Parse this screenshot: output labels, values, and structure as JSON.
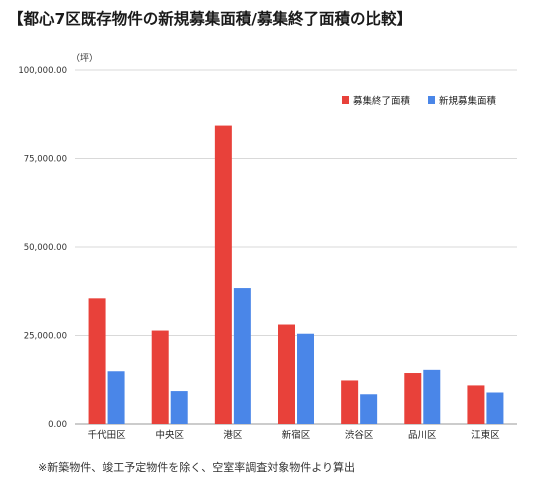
{
  "title": "【都心7区既存物件の新規募集面積/募集終了面積の比較】",
  "footnote": "※新築物件、竣工予定物件を除く、空室率調査対象物件より算出",
  "chart_data": {
    "type": "bar",
    "unit_label": "（坪）",
    "categories": [
      "千代田区",
      "中央区",
      "港区",
      "新宿区",
      "渋谷区",
      "品川区",
      "江東区"
    ],
    "series": [
      {
        "name": "募集終了面積",
        "color": "#e8413a",
        "values": [
          35500,
          26400,
          84300,
          28100,
          12300,
          14400,
          10900
        ]
      },
      {
        "name": "新規募集面積",
        "color": "#4a86e8",
        "values": [
          14900,
          9300,
          38400,
          25500,
          8400,
          15300,
          8900
        ]
      }
    ],
    "ylim": [
      0,
      100000
    ],
    "yticks": [
      0,
      25000,
      50000,
      75000,
      100000
    ],
    "ytick_labels": [
      "0.00",
      "25,000.00",
      "50,000.00",
      "75,000.00",
      "100,000.00"
    ],
    "grid": true,
    "legend_position": "top-right",
    "xlabel": "",
    "ylabel": ""
  }
}
